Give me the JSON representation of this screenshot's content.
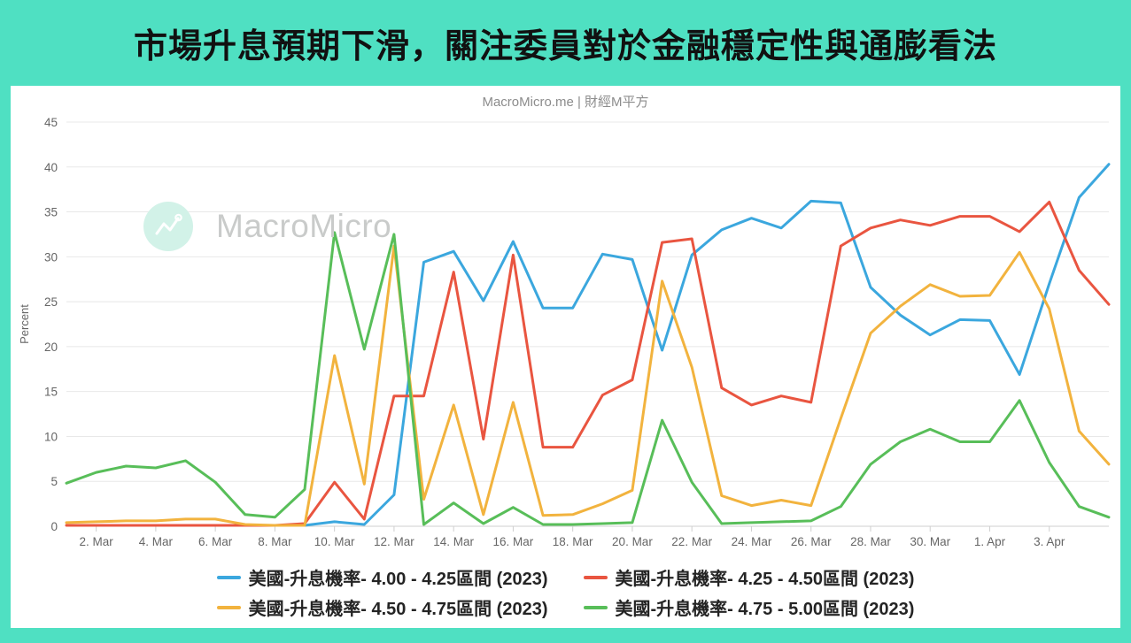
{
  "page": {
    "title": "市場升息預期下滑，關注委員對於金融穩定性與通膨看法"
  },
  "chart": {
    "subtitle": "MacroMicro.me | 財經M平方",
    "watermark_text": "MacroMicro"
  },
  "colors": {
    "background_teal": "#4FE0C2",
    "card_white": "#ffffff",
    "title_text": "#111111",
    "subtitle_text": "#8c8c8c",
    "axis_text": "#666666",
    "gridline": "#e8e8e8",
    "axis_line": "#cfcfcf",
    "legend_text": "#242424",
    "series_blue": "#3BA7DE",
    "series_red": "#E95540",
    "series_yellow": "#F2B33E",
    "series_green": "#58BE59"
  },
  "chart_data": {
    "type": "line",
    "title": "",
    "xlabel": "",
    "ylabel": "Percent",
    "ylim": [
      0,
      45
    ],
    "y_ticks": [
      0,
      5,
      10,
      15,
      20,
      25,
      30,
      35,
      40,
      45
    ],
    "grid": true,
    "legend_position": "bottom",
    "x": [
      "1. Mar",
      "2. Mar",
      "3. Mar",
      "4. Mar",
      "5. Mar",
      "6. Mar",
      "7. Mar",
      "8. Mar",
      "9. Mar",
      "10. Mar",
      "11. Mar",
      "12. Mar",
      "13. Mar",
      "14. Mar",
      "15. Mar",
      "16. Mar",
      "17. Mar",
      "18. Mar",
      "19. Mar",
      "20. Mar",
      "21. Mar",
      "22. Mar",
      "23. Mar",
      "24. Mar",
      "25. Mar",
      "26. Mar",
      "27. Mar",
      "28. Mar",
      "29. Mar",
      "30. Mar",
      "31. Mar",
      "1. Apr",
      "2. Apr",
      "3. Apr",
      "4. Apr",
      "5. Apr"
    ],
    "x_tick_indices": [
      1,
      3,
      5,
      7,
      9,
      11,
      13,
      15,
      17,
      19,
      21,
      23,
      25,
      27,
      29,
      31,
      33
    ],
    "series": [
      {
        "name": "美國-升息機率- 4.00 - 4.25區間 (2023)",
        "color": "#3BA7DE",
        "values": [
          null,
          null,
          null,
          null,
          null,
          null,
          null,
          null,
          0.1,
          0.5,
          0.2,
          3.5,
          29.4,
          30.6,
          25.1,
          31.7,
          24.3,
          24.3,
          30.3,
          29.7,
          19.6,
          30.2,
          33.0,
          34.3,
          33.2,
          36.2,
          36.0,
          26.6,
          23.5,
          21.3,
          23.0,
          22.9,
          16.9,
          27.0,
          36.6,
          40.3
        ]
      },
      {
        "name": "美國-升息機率- 4.25 - 4.50區間 (2023)",
        "color": "#E95540",
        "values": [
          0.1,
          0.1,
          0.1,
          0.1,
          0.1,
          0.1,
          0.1,
          0.1,
          0.3,
          4.9,
          0.8,
          14.5,
          14.5,
          28.3,
          9.7,
          30.2,
          8.8,
          8.8,
          14.6,
          16.3,
          31.6,
          32.0,
          15.4,
          13.5,
          14.5,
          13.8,
          31.2,
          33.2,
          34.1,
          33.5,
          34.5,
          34.5,
          32.8,
          36.1,
          28.5,
          24.7
        ]
      },
      {
        "name": "美國-升息機率- 4.50 - 4.75區間 (2023)",
        "color": "#F2B33E",
        "values": [
          0.4,
          0.5,
          0.6,
          0.6,
          0.8,
          0.8,
          0.2,
          0.1,
          0.1,
          19.0,
          4.7,
          31.2,
          3.0,
          13.5,
          1.3,
          13.8,
          1.2,
          1.3,
          2.5,
          4.0,
          27.3,
          17.7,
          3.4,
          2.3,
          2.9,
          2.3,
          12.0,
          21.5,
          24.5,
          26.9,
          25.6,
          25.7,
          30.5,
          24.2,
          10.6,
          6.9
        ]
      },
      {
        "name": "美國-升息機率- 4.75 - 5.00區間 (2023)",
        "color": "#58BE59",
        "values": [
          4.8,
          6.0,
          6.7,
          6.5,
          7.3,
          4.9,
          1.3,
          1.0,
          4.1,
          32.7,
          19.7,
          32.5,
          0.2,
          2.6,
          0.3,
          2.1,
          0.2,
          0.2,
          0.3,
          0.4,
          11.8,
          4.9,
          0.3,
          0.4,
          0.5,
          0.6,
          2.2,
          6.9,
          9.4,
          10.8,
          9.4,
          9.4,
          14.0,
          7.1,
          2.2,
          1.0
        ]
      }
    ]
  }
}
